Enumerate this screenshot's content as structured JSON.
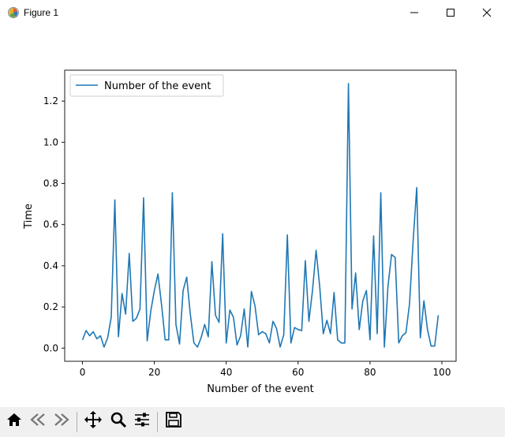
{
  "window": {
    "title": "Figure 1"
  },
  "icons": {
    "app": "matplotlib-figure-icon",
    "minimize": "minimize-icon",
    "maximize": "maximize-icon",
    "close": "close-icon",
    "home": "home-icon",
    "back": "back-arrow-icon",
    "forward": "forward-arrow-icon",
    "pan": "pan-move-icon",
    "zoom": "zoom-magnifier-icon",
    "configure": "configure-subplots-icon",
    "save": "save-floppy-icon"
  },
  "colors": {
    "line": "#1f77b4",
    "toolbar_bg": "#f0f0f0"
  },
  "chart_data": {
    "type": "line",
    "xlabel": "Number of the event",
    "ylabel": "Time",
    "xlim": [
      -4.95,
      103.95
    ],
    "ylim": [
      -0.064,
      1.35
    ],
    "xticks": [
      0,
      20,
      40,
      60,
      80,
      100
    ],
    "xtick_labels": [
      "0",
      "20",
      "40",
      "60",
      "80",
      "100"
    ],
    "yticks": [
      0.0,
      0.2,
      0.4,
      0.6,
      0.8,
      1.0,
      1.2
    ],
    "ytick_labels": [
      "0.0",
      "0.2",
      "0.4",
      "0.6",
      "0.8",
      "1.0",
      "1.2"
    ],
    "grid": false,
    "legend": {
      "placement": "top-left",
      "entries": [
        "Number of the event"
      ]
    },
    "series": [
      {
        "name": "Number of the event",
        "color": "#1f77b4",
        "x": [
          0,
          1,
          2,
          3,
          4,
          5,
          6,
          7,
          8,
          9,
          10,
          11,
          12,
          13,
          14,
          15,
          16,
          17,
          18,
          19,
          20,
          21,
          22,
          23,
          24,
          25,
          26,
          27,
          28,
          29,
          30,
          31,
          32,
          33,
          34,
          35,
          36,
          37,
          38,
          39,
          40,
          41,
          42,
          43,
          44,
          45,
          46,
          47,
          48,
          49,
          50,
          51,
          52,
          53,
          54,
          55,
          56,
          57,
          58,
          59,
          60,
          61,
          62,
          63,
          64,
          65,
          66,
          67,
          68,
          69,
          70,
          71,
          72,
          73,
          74,
          75,
          76,
          77,
          78,
          79,
          80,
          81,
          82,
          83,
          84,
          85,
          86,
          87,
          88,
          89,
          90,
          91,
          92,
          93,
          94,
          95,
          96,
          97,
          98,
          99
        ],
        "values": [
          0.04,
          0.085,
          0.06,
          0.08,
          0.045,
          0.06,
          0.005,
          0.05,
          0.15,
          0.72,
          0.055,
          0.265,
          0.165,
          0.46,
          0.13,
          0.145,
          0.19,
          0.73,
          0.035,
          0.18,
          0.28,
          0.36,
          0.21,
          0.04,
          0.04,
          0.755,
          0.115,
          0.02,
          0.28,
          0.345,
          0.165,
          0.025,
          0.005,
          0.05,
          0.115,
          0.055,
          0.42,
          0.16,
          0.125,
          0.555,
          0.025,
          0.185,
          0.15,
          0.015,
          0.06,
          0.19,
          0.005,
          0.275,
          0.205,
          0.065,
          0.08,
          0.07,
          0.025,
          0.13,
          0.095,
          0.005,
          0.065,
          0.55,
          0.025,
          0.1,
          0.09,
          0.085,
          0.425,
          0.13,
          0.28,
          0.475,
          0.3,
          0.07,
          0.135,
          0.07,
          0.27,
          0.04,
          0.025,
          0.025,
          1.285,
          0.19,
          0.365,
          0.09,
          0.23,
          0.28,
          0.04,
          0.545,
          0.07,
          0.755,
          0.005,
          0.3,
          0.455,
          0.44,
          0.025,
          0.06,
          0.075,
          0.215,
          0.52,
          0.78,
          0.05,
          0.23,
          0.09,
          0.01,
          0.01,
          0.16
        ]
      }
    ]
  }
}
